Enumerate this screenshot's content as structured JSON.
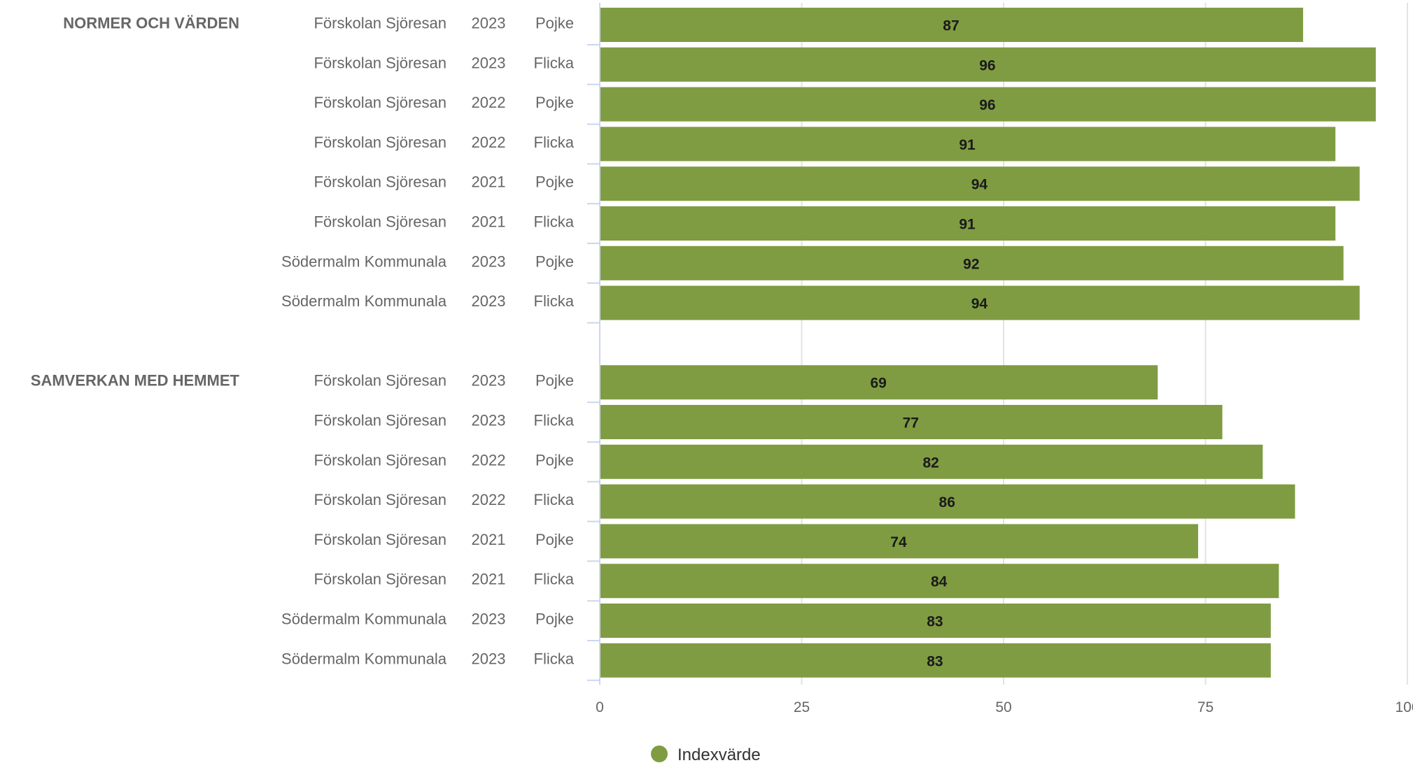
{
  "chart_data": {
    "type": "bar",
    "orientation": "horizontal",
    "xlim": [
      0,
      100
    ],
    "xticks": [
      0,
      25,
      50,
      75,
      100
    ],
    "grid": true,
    "legend_position": "bottom-center",
    "bar_color": "#7f9c42",
    "groups": [
      {
        "label": "NORMER OCH VÄRDEN",
        "rows": [
          {
            "unit": "Förskolan Sjöresan",
            "year": "2023",
            "gender": "Pojke",
            "value": 87
          },
          {
            "unit": "Förskolan Sjöresan",
            "year": "2023",
            "gender": "Flicka",
            "value": 96
          },
          {
            "unit": "Förskolan Sjöresan",
            "year": "2022",
            "gender": "Pojke",
            "value": 96
          },
          {
            "unit": "Förskolan Sjöresan",
            "year": "2022",
            "gender": "Flicka",
            "value": 91
          },
          {
            "unit": "Förskolan Sjöresan",
            "year": "2021",
            "gender": "Pojke",
            "value": 94
          },
          {
            "unit": "Förskolan Sjöresan",
            "year": "2021",
            "gender": "Flicka",
            "value": 91
          },
          {
            "unit": "Södermalm Kommunala",
            "year": "2023",
            "gender": "Pojke",
            "value": 92
          },
          {
            "unit": "Södermalm Kommunala",
            "year": "2023",
            "gender": "Flicka",
            "value": 94
          }
        ]
      },
      {
        "label": "SAMVERKAN MED HEMMET",
        "rows": [
          {
            "unit": "Förskolan Sjöresan",
            "year": "2023",
            "gender": "Pojke",
            "value": 69
          },
          {
            "unit": "Förskolan Sjöresan",
            "year": "2023",
            "gender": "Flicka",
            "value": 77
          },
          {
            "unit": "Förskolan Sjöresan",
            "year": "2022",
            "gender": "Pojke",
            "value": 82
          },
          {
            "unit": "Förskolan Sjöresan",
            "year": "2022",
            "gender": "Flicka",
            "value": 86
          },
          {
            "unit": "Förskolan Sjöresan",
            "year": "2021",
            "gender": "Pojke",
            "value": 74
          },
          {
            "unit": "Förskolan Sjöresan",
            "year": "2021",
            "gender": "Flicka",
            "value": 84
          },
          {
            "unit": "Södermalm Kommunala",
            "year": "2023",
            "gender": "Pojke",
            "value": 83
          },
          {
            "unit": "Södermalm Kommunala",
            "year": "2023",
            "gender": "Flicka",
            "value": 83
          }
        ]
      }
    ],
    "series": [
      {
        "name": "Indexvärde"
      }
    ]
  }
}
